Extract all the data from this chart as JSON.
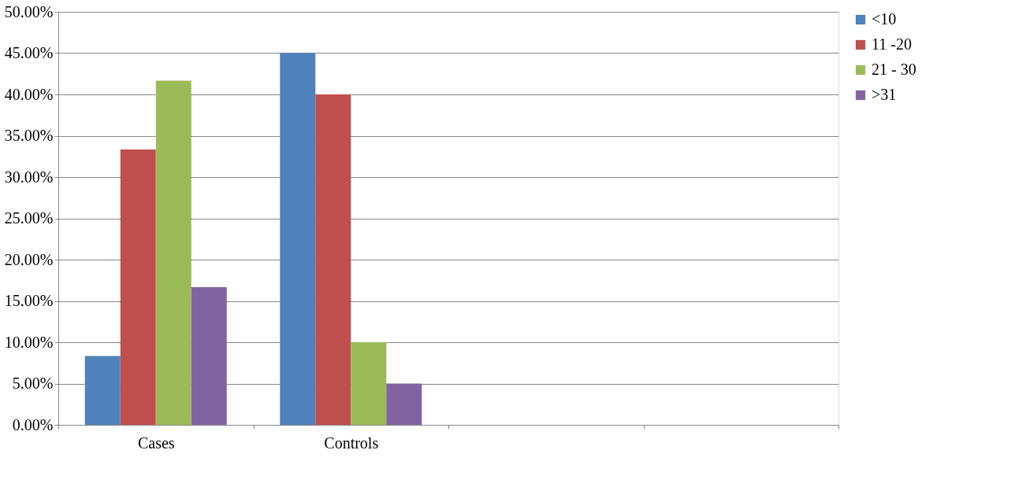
{
  "chart_data": {
    "type": "bar",
    "categories": [
      "Cases",
      "Controls",
      null,
      null
    ],
    "series": [
      {
        "name": "<10",
        "color": "#4f81bd",
        "values": [
          8.33,
          45,
          null,
          null
        ]
      },
      {
        "name": "11 -20",
        "color": "#c0504d",
        "values": [
          33.33,
          40,
          null,
          null
        ]
      },
      {
        "name": "21 - 30",
        "color": "#9bbb59",
        "values": [
          41.67,
          10,
          null,
          null
        ]
      },
      {
        "name": ">31",
        "color": "#8064a2",
        "values": [
          16.67,
          5,
          null,
          null
        ]
      }
    ],
    "ylim": [
      0,
      50
    ],
    "yticks": [
      {
        "value": 0,
        "label": "0.00%"
      },
      {
        "value": 5,
        "label": "5.00%"
      },
      {
        "value": 10,
        "label": "10.00%"
      },
      {
        "value": 15,
        "label": "15.00%"
      },
      {
        "value": 20,
        "label": "20.00%"
      },
      {
        "value": 25,
        "label": "25.00%"
      },
      {
        "value": 30,
        "label": "30.00%"
      },
      {
        "value": 35,
        "label": "35.00%"
      },
      {
        "value": 40,
        "label": "40.00%"
      },
      {
        "value": 45,
        "label": "45.00%"
      },
      {
        "value": 50,
        "label": "50.00%"
      }
    ],
    "grid": "y",
    "legend": "right"
  }
}
